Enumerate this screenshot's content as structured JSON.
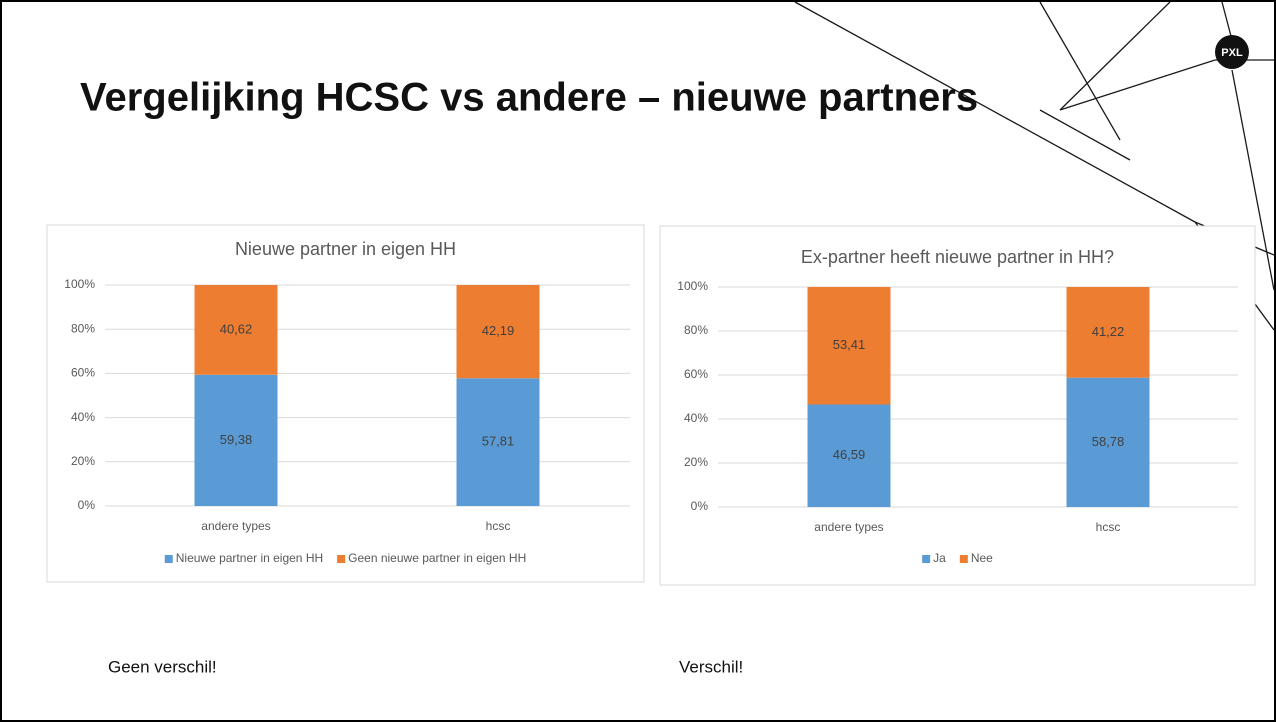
{
  "title": "Vergelijking HCSC vs andere – nieuwe partners",
  "logo": "PXL",
  "captions": [
    "Geen verschil!",
    "Verschil!"
  ],
  "chart_data": [
    {
      "type": "stacked_bar",
      "title": "Nieuwe partner in eigen HH",
      "categories": [
        "andere types",
        "hcsc"
      ],
      "series": [
        {
          "name": "Nieuwe partner in eigen HH",
          "color": "#5b9bd5",
          "values": [
            59.38,
            57.81
          ],
          "value_labels": [
            "59,38",
            "57,81"
          ]
        },
        {
          "name": "Geen nieuwe partner in eigen HH",
          "color": "#ed7d31",
          "values": [
            40.62,
            42.19
          ],
          "value_labels": [
            "40,62",
            "42,19"
          ]
        }
      ],
      "ylim": [
        0,
        100
      ],
      "yticks": [
        {
          "value": 0,
          "label": "0%"
        },
        {
          "value": 20,
          "label": "20%"
        },
        {
          "value": 40,
          "label": "40%"
        },
        {
          "value": 60,
          "label": "60%"
        },
        {
          "value": 80,
          "label": "80%"
        },
        {
          "value": 100,
          "label": "100%"
        }
      ],
      "grid": true,
      "legend": "bottom"
    },
    {
      "type": "stacked_bar",
      "title": "Ex-partner heeft nieuwe partner in HH?",
      "categories": [
        "andere types",
        "hcsc"
      ],
      "series": [
        {
          "name": "Ja",
          "color": "#5b9bd5",
          "values": [
            46.59,
            58.78
          ],
          "value_labels": [
            "46,59",
            "58,78"
          ]
        },
        {
          "name": "Nee",
          "color": "#ed7d31",
          "values": [
            53.41,
            41.22
          ],
          "value_labels": [
            "53,41",
            "41,22"
          ]
        }
      ],
      "ylim": [
        0,
        100
      ],
      "yticks": [
        {
          "value": 0,
          "label": "0%"
        },
        {
          "value": 20,
          "label": "20%"
        },
        {
          "value": 40,
          "label": "40%"
        },
        {
          "value": 60,
          "label": "60%"
        },
        {
          "value": 80,
          "label": "80%"
        },
        {
          "value": 100,
          "label": "100%"
        }
      ],
      "grid": true,
      "legend": "bottom"
    }
  ]
}
